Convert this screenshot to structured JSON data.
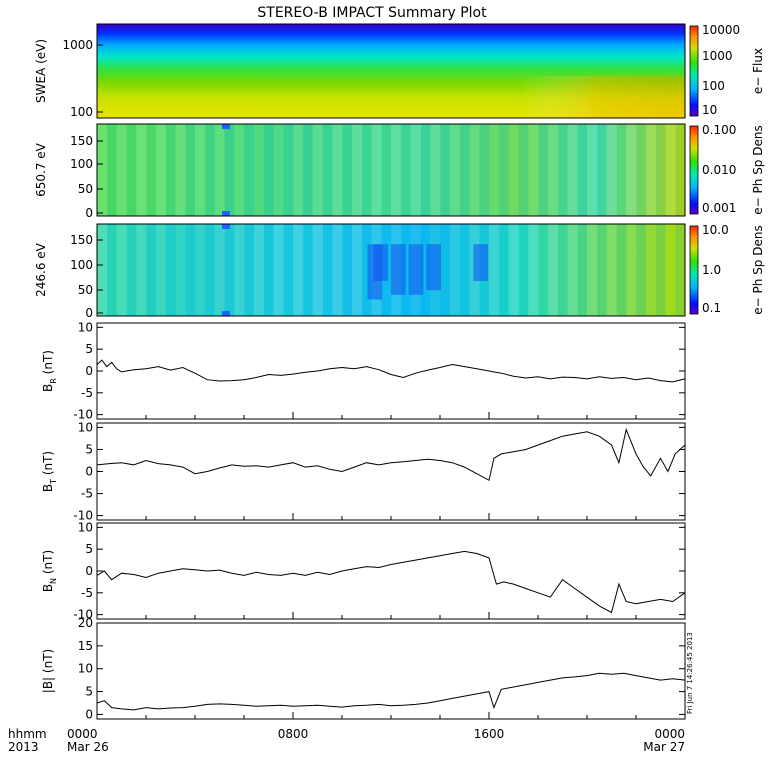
{
  "title": "STEREO-B IMPACT Summary Plot",
  "timestamp": "Fri Jun  7 14:26:45 2013",
  "x_axis": {
    "prefix_top": "hhmm",
    "prefix_bottom": "2013",
    "ticks": [
      {
        "label": "0000",
        "sub": "Mar 26",
        "hours": 0
      },
      {
        "label": "0800",
        "sub": "",
        "hours": 8
      },
      {
        "label": "1600",
        "sub": "",
        "hours": 16
      },
      {
        "label": "0000",
        "sub": "Mar 27",
        "hours": 24
      }
    ]
  },
  "spectrograms": [
    {
      "id": "swea",
      "ylabel": "SWEA (eV)",
      "yticks": [
        "1000",
        "100"
      ],
      "colorbar_label": "e− Flux",
      "colorbar_ticks": [
        "10000",
        "1000",
        "100",
        "10"
      ],
      "scale": "log"
    },
    {
      "id": "pad650",
      "ylabel": "650.7 eV",
      "yticks": [
        "150",
        "100",
        "50",
        "0"
      ],
      "colorbar_label": "e− Ph Sp Dens",
      "colorbar_ticks": [
        "0.100",
        "0.010",
        "0.001"
      ],
      "scale": "log"
    },
    {
      "id": "pad246",
      "ylabel": "246.6 eV",
      "yticks": [
        "150",
        "100",
        "50",
        "0"
      ],
      "colorbar_label": "e− Ph Sp Dens",
      "colorbar_ticks": [
        "10.0",
        "1.0",
        "0.1"
      ],
      "scale": "log"
    }
  ],
  "chart_data": [
    {
      "type": "line",
      "id": "br",
      "ylabel": "B",
      "ysub": "R",
      "yunit": "(nT)",
      "ylim": [
        -11,
        11
      ],
      "yticks": [
        "10",
        "5",
        "0",
        "-5",
        "-10"
      ],
      "x_hours": [
        0,
        0.2,
        0.4,
        0.6,
        0.8,
        1,
        1.5,
        2,
        2.5,
        3,
        3.5,
        4,
        4.5,
        5,
        5.5,
        6,
        6.5,
        7,
        7.5,
        8,
        8.5,
        9,
        9.5,
        10,
        10.5,
        11,
        11.5,
        12,
        12.5,
        13,
        13.5,
        14,
        14.5,
        15,
        15.5,
        16,
        16.5,
        17,
        17.5,
        18,
        18.5,
        19,
        19.5,
        20,
        20.5,
        21,
        21.5,
        22,
        22.5,
        23,
        23.5,
        24
      ],
      "y": [
        1.5,
        2.5,
        1,
        2,
        0.5,
        -0.2,
        0.3,
        0.5,
        1,
        0.2,
        0.8,
        -0.5,
        -2,
        -2.3,
        -2.2,
        -2,
        -1.5,
        -0.8,
        -1,
        -0.7,
        -0.3,
        0,
        0.5,
        0.8,
        0.5,
        1,
        0.3,
        -0.8,
        -1.5,
        -0.5,
        0.2,
        0.8,
        1.5,
        1,
        0.5,
        0,
        -0.5,
        -1.2,
        -1.6,
        -1.3,
        -1.8,
        -1.4,
        -1.5,
        -1.8,
        -1.3,
        -1.7,
        -1.5,
        -2,
        -1.6,
        -2.2,
        -2.5,
        -1.8
      ]
    },
    {
      "type": "line",
      "id": "bt",
      "ylabel": "B",
      "ysub": "T",
      "yunit": "(nT)",
      "ylim": [
        -11,
        11
      ],
      "yticks": [
        "10",
        "5",
        "0",
        "-5",
        "-10"
      ],
      "x_hours": [
        0,
        0.5,
        1,
        1.5,
        2,
        2.5,
        3,
        3.5,
        4,
        4.5,
        5,
        5.5,
        6,
        6.5,
        7,
        7.5,
        8,
        8.5,
        9,
        9.5,
        10,
        10.5,
        11,
        11.5,
        12,
        12.5,
        13,
        13.5,
        14,
        14.5,
        15,
        15.5,
        16,
        16.2,
        16.5,
        17,
        17.5,
        18,
        18.5,
        19,
        19.5,
        20,
        20.5,
        21,
        21.3,
        21.6,
        22,
        22.3,
        22.6,
        23,
        23.3,
        23.6,
        24
      ],
      "y": [
        1.5,
        1.8,
        2,
        1.5,
        2.5,
        1.8,
        1.5,
        1,
        -0.5,
        0,
        0.8,
        1.5,
        1.2,
        1.3,
        1,
        1.5,
        2,
        1,
        1.3,
        0.5,
        0,
        1,
        2,
        1.5,
        2,
        2.2,
        2.5,
        2.8,
        2.5,
        2,
        1,
        -0.5,
        -2,
        3,
        4,
        4.5,
        5,
        6,
        7,
        8,
        8.5,
        9,
        8,
        6,
        2,
        9.5,
        4,
        1,
        -1,
        3,
        0,
        4,
        6
      ]
    },
    {
      "type": "line",
      "id": "bn",
      "ylabel": "B",
      "ysub": "N",
      "yunit": "(nT)",
      "ylim": [
        -11,
        11
      ],
      "yticks": [
        "10",
        "5",
        "0",
        "-5",
        "-10"
      ],
      "x_hours": [
        0,
        0.3,
        0.6,
        1,
        1.5,
        2,
        2.5,
        3,
        3.5,
        4,
        4.5,
        5,
        5.5,
        6,
        6.5,
        7,
        7.5,
        8,
        8.5,
        9,
        9.5,
        10,
        10.5,
        11,
        11.5,
        12,
        12.5,
        13,
        13.5,
        14,
        14.5,
        15,
        15.5,
        16,
        16.3,
        16.6,
        17,
        17.5,
        18,
        18.5,
        19,
        19.5,
        20,
        20.5,
        21,
        21.3,
        21.6,
        22,
        22.5,
        23,
        23.5,
        24
      ],
      "y": [
        -1,
        0,
        -2,
        -0.5,
        -0.8,
        -1.5,
        -0.5,
        0,
        0.5,
        0.3,
        0,
        0.2,
        -0.5,
        -1,
        -0.3,
        -0.8,
        -1,
        -0.5,
        -1,
        -0.3,
        -0.8,
        0,
        0.5,
        1,
        0.8,
        1.5,
        2,
        2.5,
        3,
        3.5,
        4,
        4.5,
        4,
        3,
        -3,
        -2.5,
        -3,
        -4,
        -5,
        -6,
        -2,
        -4,
        -6,
        -8,
        -9.5,
        -3,
        -7,
        -7.5,
        -7,
        -6.5,
        -7,
        -5
      ]
    },
    {
      "type": "line",
      "id": "bmag",
      "ylabel": "|B|",
      "ysub": "",
      "yunit": "(nT)",
      "ylim": [
        -1,
        20
      ],
      "yticks": [
        "20",
        "15",
        "10",
        "5",
        "0"
      ],
      "x_hours": [
        0,
        0.3,
        0.6,
        1,
        1.5,
        2,
        2.5,
        3,
        3.5,
        4,
        4.5,
        5,
        5.5,
        6,
        6.5,
        7,
        7.5,
        8,
        8.5,
        9,
        9.5,
        10,
        10.5,
        11,
        11.5,
        12,
        12.5,
        13,
        13.5,
        14,
        14.5,
        15,
        15.5,
        16,
        16.2,
        16.5,
        17,
        17.5,
        18,
        18.5,
        19,
        19.5,
        20,
        20.5,
        21,
        21.5,
        22,
        22.5,
        23,
        23.5,
        24
      ],
      "y": [
        2.5,
        3,
        1.5,
        1.2,
        1,
        1.5,
        1.2,
        1.4,
        1.5,
        1.8,
        2.2,
        2.3,
        2.2,
        2,
        1.8,
        1.9,
        2,
        1.8,
        1.9,
        2,
        1.8,
        1.6,
        1.9,
        2,
        2.2,
        1.9,
        2,
        2.2,
        2.5,
        3,
        3.5,
        4,
        4.5,
        5,
        1.5,
        5.5,
        6,
        6.5,
        7,
        7.5,
        8,
        8.2,
        8.5,
        9,
        8.8,
        9,
        8.5,
        8,
        7.5,
        7.8,
        7.5
      ]
    }
  ]
}
